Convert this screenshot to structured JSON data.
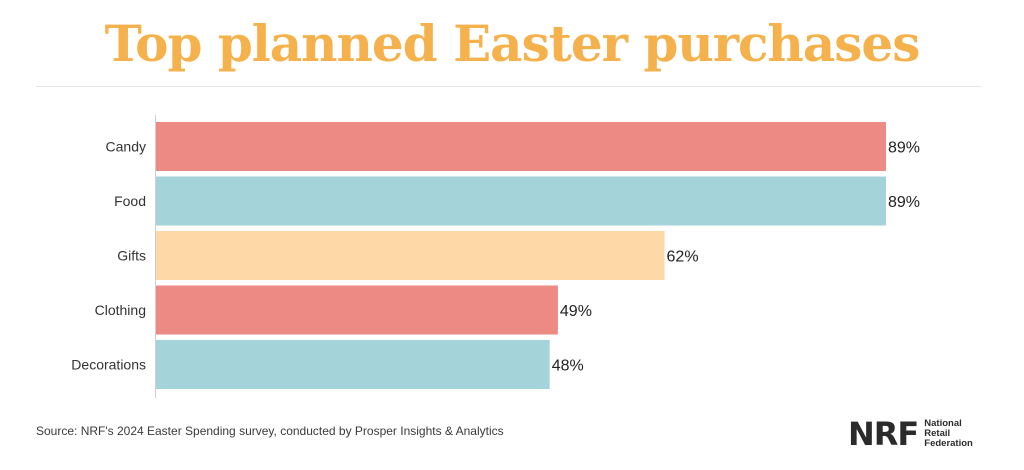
{
  "colors": {
    "title": "#f5b24c",
    "red": "#ee8a84",
    "teal": "#a4d3d9",
    "peach": "#fed9a7"
  },
  "chart_data": {
    "type": "bar",
    "orientation": "horizontal",
    "title": "Top planned Easter purchases",
    "categories": [
      "Candy",
      "Food",
      "Gifts",
      "Clothing",
      "Decorations"
    ],
    "values": [
      89,
      89,
      62,
      49,
      48
    ],
    "value_labels": [
      "89%",
      "89%",
      "62%",
      "49%",
      "48%"
    ],
    "bar_colors": [
      "#ee8a84",
      "#a4d3d9",
      "#fed9a7",
      "#ee8a84",
      "#a4d3d9"
    ],
    "xlim": [
      0,
      89
    ],
    "unit": "%",
    "grid": false,
    "legend": "none"
  },
  "footer": {
    "source": "Source: NRF's 2024 Easter Spending survey, conducted by Prosper Insights & Analytics",
    "logo_mark": "NRF",
    "logo_lines": [
      "National",
      "Retail",
      "Federation"
    ]
  }
}
